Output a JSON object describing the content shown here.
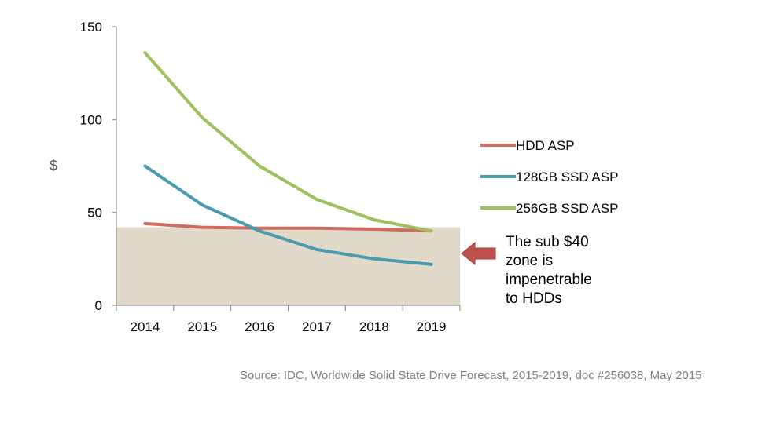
{
  "chart_data": {
    "type": "line",
    "x": [
      2014,
      2015,
      2016,
      2017,
      2018,
      2019
    ],
    "categories": [
      "2014",
      "2015",
      "2016",
      "2017",
      "2018",
      "2019"
    ],
    "series": [
      {
        "name": "HDD ASP",
        "color": "#cf6b5f",
        "values": [
          44,
          42,
          41.5,
          41.5,
          41,
          40
        ]
      },
      {
        "name": "128GB SSD ASP",
        "color": "#4a9bae",
        "values": [
          75,
          54,
          40,
          30,
          25,
          22
        ]
      },
      {
        "name": "256GB SSD ASP",
        "color": "#9ec15e",
        "values": [
          136,
          101,
          75,
          57,
          46,
          40
        ]
      }
    ],
    "ylabel": "$",
    "ylim": [
      0,
      150
    ],
    "yticks": [
      "0",
      "50",
      "100",
      "150"
    ],
    "grid": false,
    "legend_position": "right",
    "shaded_region": {
      "y_from": 0,
      "y_to": 42,
      "color": "#ddd5c4"
    },
    "annotation": {
      "lines": [
        "The sub $40",
        "zone is",
        "impenetrable",
        "to HDDs"
      ],
      "arrow_color": "#c0504d"
    },
    "source": "Source: IDC, Worldwide Solid State Drive Forecast, 2015-2019, doc #256038, May 2015"
  }
}
